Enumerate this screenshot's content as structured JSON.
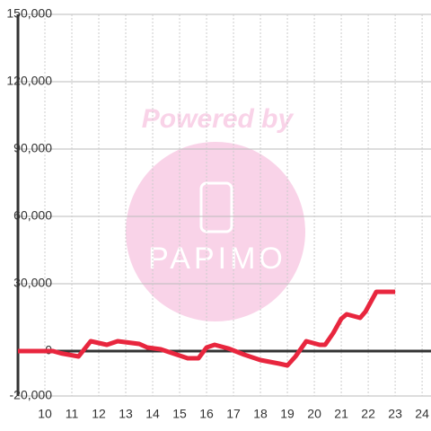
{
  "chart_data": {
    "type": "line",
    "x": [
      9,
      10.3,
      10.6,
      11.25,
      11.7,
      12.3,
      12.7,
      13.5,
      13.8,
      14.3,
      14.7,
      15.3,
      15.7,
      16,
      16.3,
      16.8,
      17.4,
      18,
      18.7,
      19,
      19.3,
      19.7,
      20.2,
      20.4,
      20.7,
      21,
      21.2,
      21.7,
      21.9,
      22.3,
      23
    ],
    "series": [
      {
        "color": "#e8263e",
        "values": [
          0,
          0,
          -1000,
          -2400,
          4400,
          2800,
          4400,
          3200,
          1600,
          800,
          -800,
          -3200,
          -3200,
          1600,
          2800,
          1200,
          -1600,
          -4000,
          -5600,
          -6400,
          -2400,
          4400,
          2800,
          2800,
          8000,
          14400,
          16400,
          14800,
          17600,
          26400,
          26400
        ]
      }
    ],
    "xlim": [
      9,
      24.33
    ],
    "xticks": [
      10,
      11,
      12,
      13,
      14,
      15,
      16,
      17,
      18,
      19,
      20,
      21,
      22,
      23,
      24
    ],
    "ylim": [
      -20000,
      150000
    ],
    "yticks": [
      {
        "value": -20000,
        "label": "-20,000"
      },
      0,
      {
        "value": 30000,
        "label": "30,000"
      },
      {
        "value": 60000,
        "label": "60,000"
      },
      {
        "value": 90000,
        "label": "90,000"
      },
      {
        "value": 120000,
        "label": "120,000"
      },
      {
        "value": 150000,
        "label": "150,000"
      }
    ],
    "grid": true
  },
  "watermark": {
    "top": "Powered by",
    "logo": "PAPIMO"
  }
}
